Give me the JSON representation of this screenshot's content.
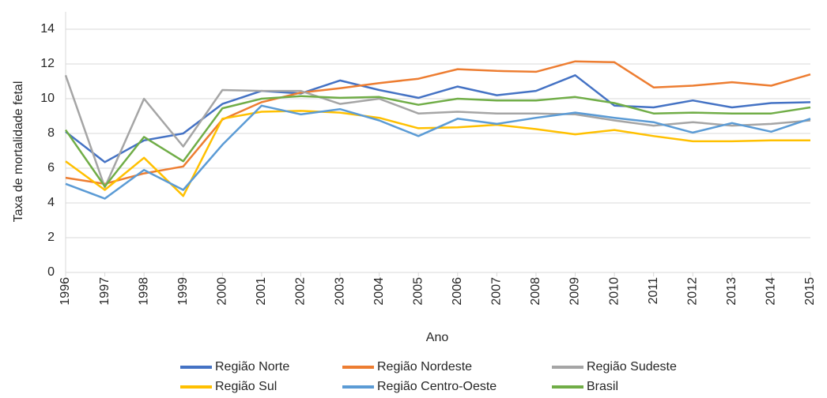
{
  "chart_data": {
    "type": "line",
    "x_label": "Ano",
    "y_label": "Taxa de mortalidade fetal",
    "categories": [
      "1996",
      "1997",
      "1998",
      "1999",
      "2000",
      "2001",
      "2002",
      "2003",
      "2004",
      "2005",
      "2006",
      "2007",
      "2008",
      "2009",
      "2010",
      "2011",
      "2012",
      "2013",
      "2014",
      "2015"
    ],
    "series": [
      {
        "name": "Região Norte",
        "color": "#4472c4",
        "values": [
          8.1,
          6.35,
          7.6,
          8.0,
          9.7,
          10.45,
          10.3,
          11.05,
          10.5,
          10.05,
          10.7,
          10.2,
          10.45,
          11.35,
          9.6,
          9.5,
          9.9,
          9.5,
          9.75,
          9.8
        ]
      },
      {
        "name": "Região Nordeste",
        "color": "#ed7d31",
        "values": [
          5.45,
          5.1,
          5.7,
          6.1,
          8.8,
          9.8,
          10.35,
          10.6,
          10.9,
          11.15,
          11.7,
          11.6,
          11.55,
          12.15,
          12.1,
          10.65,
          10.75,
          10.95,
          10.75,
          11.4
        ]
      },
      {
        "name": "Região Sudeste",
        "color": "#a5a5a5",
        "values": [
          11.35,
          4.9,
          10.0,
          7.25,
          10.5,
          10.45,
          10.45,
          9.7,
          10.0,
          9.15,
          9.25,
          9.15,
          9.15,
          9.1,
          8.75,
          8.45,
          8.65,
          8.45,
          8.55,
          8.75
        ]
      },
      {
        "name": "Região Sul",
        "color": "#ffc000",
        "values": [
          6.4,
          4.75,
          6.6,
          4.4,
          8.85,
          9.25,
          9.3,
          9.2,
          8.9,
          8.3,
          8.35,
          8.5,
          8.25,
          7.95,
          8.2,
          7.85,
          7.55,
          7.55,
          7.6,
          7.6
        ]
      },
      {
        "name": "Região Centro-Oeste",
        "color": "#5b9bd5",
        "values": [
          5.1,
          4.25,
          5.9,
          4.75,
          7.35,
          9.6,
          9.1,
          9.4,
          8.75,
          7.85,
          8.85,
          8.55,
          8.9,
          9.2,
          8.9,
          8.65,
          8.05,
          8.6,
          8.1,
          8.85
        ]
      },
      {
        "name": "Brasil",
        "color": "#70ad47",
        "values": [
          8.2,
          4.95,
          7.8,
          6.4,
          9.45,
          10.0,
          10.15,
          10.05,
          10.1,
          9.65,
          10.0,
          9.9,
          9.9,
          10.1,
          9.75,
          9.15,
          9.2,
          9.15,
          9.15,
          9.5
        ]
      }
    ],
    "ylim": [
      0,
      15
    ],
    "yticks": [
      0,
      2,
      4,
      6,
      8,
      10,
      12,
      14
    ],
    "grid": true,
    "legend": "bottom"
  }
}
